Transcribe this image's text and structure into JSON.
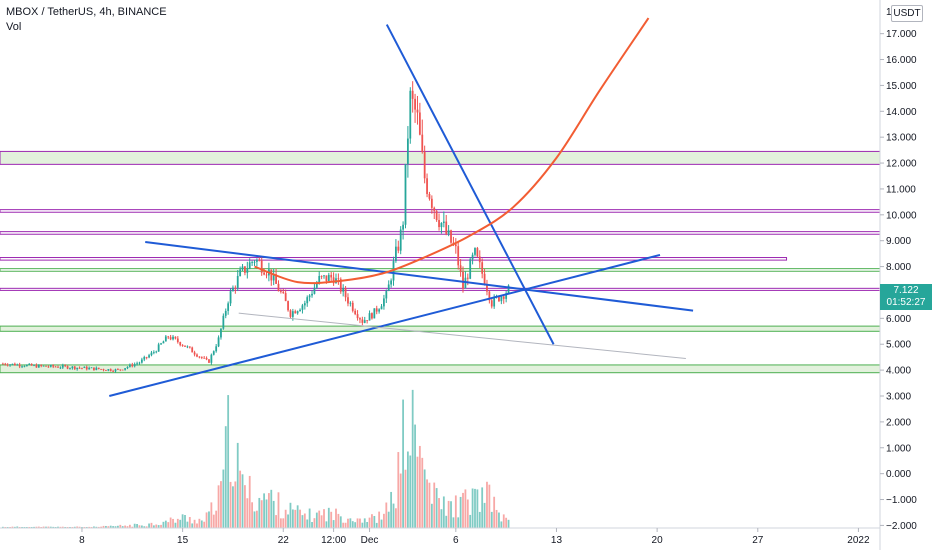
{
  "header": {
    "title": "MBOX / TetherUS, 4h, BINANCE",
    "volume_label": "Vol"
  },
  "axis": {
    "unit": "USDT",
    "last_price": "7.122",
    "countdown": "01:52:27"
  },
  "colors": {
    "up": "#26a69a",
    "down": "#ef5350",
    "trend_line": "#1f5bd6",
    "arc": "#f25d33",
    "zone_green": "#4caf50",
    "zone_purple": "#9c27b0",
    "zone_fill": "#dff0d8"
  },
  "chart_data": {
    "type": "candlestick",
    "y_ticks": [
      "17.000",
      "16.000",
      "15.000",
      "14.000",
      "13.000",
      "12.000",
      "11.000",
      "10.000",
      "9.000",
      "8.000",
      "7.000",
      "6.000",
      "5.000",
      "4.000",
      "3.000",
      "2.000",
      "1.000",
      "0.000",
      "−1.000",
      "−2.000"
    ],
    "y_tick_values": [
      17,
      16,
      15,
      14,
      13,
      12,
      11,
      10,
      9,
      8,
      7,
      6,
      5,
      4,
      3,
      2,
      1,
      0,
      -1,
      -2
    ],
    "x_ticks": [
      "8",
      "15",
      "22",
      "12:00",
      "Dec",
      "6",
      "13",
      "20",
      "27",
      "2022"
    ],
    "x_tick_days": [
      8,
      15,
      22,
      25.5,
      28,
      34,
      41,
      48,
      55,
      62
    ],
    "x_range_days": [
      2.3,
      63.5
    ],
    "y_range": [
      -2.1,
      18.3
    ],
    "top_axis_label": "1",
    "price_anchors": [
      [
        2.5,
        4.25
      ],
      [
        5,
        4.15
      ],
      [
        7,
        4.12
      ],
      [
        9,
        4.05
      ],
      [
        10.5,
        4.0
      ],
      [
        12,
        4.3
      ],
      [
        13,
        4.7
      ],
      [
        14,
        5.3
      ],
      [
        15,
        5.0
      ],
      [
        16,
        4.6
      ],
      [
        16.8,
        4.3
      ],
      [
        17.5,
        5.2
      ],
      [
        18.2,
        6.8
      ],
      [
        19,
        7.7
      ],
      [
        20,
        8.3
      ],
      [
        21,
        7.8
      ],
      [
        22,
        6.8
      ],
      [
        22.5,
        6.2
      ],
      [
        23.5,
        6.6
      ],
      [
        24.5,
        7.5
      ],
      [
        25.5,
        7.6
      ],
      [
        26.5,
        6.7
      ],
      [
        27.5,
        5.9
      ],
      [
        28.3,
        6.2
      ],
      [
        29.2,
        6.9
      ],
      [
        29.8,
        8.4
      ],
      [
        30.3,
        9.5
      ],
      [
        30.8,
        14.5
      ],
      [
        31.3,
        13.8
      ],
      [
        31.8,
        11.5
      ],
      [
        32.5,
        10.3
      ],
      [
        33.3,
        9.3
      ],
      [
        34,
        8.6
      ],
      [
        34.5,
        7.2
      ],
      [
        35.3,
        8.5
      ],
      [
        36,
        7.5
      ],
      [
        36.5,
        6.6
      ],
      [
        37.2,
        6.9
      ],
      [
        37.7,
        7.12
      ]
    ],
    "volume_anchors": [
      [
        2.5,
        0.01
      ],
      [
        9,
        0.01
      ],
      [
        12,
        0.03
      ],
      [
        13.5,
        0.05
      ],
      [
        15,
        0.1
      ],
      [
        16.5,
        0.07
      ],
      [
        17.6,
        0.3
      ],
      [
        18.3,
        1.0
      ],
      [
        19,
        0.45
      ],
      [
        20,
        0.3
      ],
      [
        21,
        0.3
      ],
      [
        22,
        0.2
      ],
      [
        23,
        0.15
      ],
      [
        24,
        0.12
      ],
      [
        25,
        0.15
      ],
      [
        26,
        0.12
      ],
      [
        27,
        0.1
      ],
      [
        28,
        0.09
      ],
      [
        29,
        0.12
      ],
      [
        29.8,
        0.35
      ],
      [
        30.5,
        1.0
      ],
      [
        31.2,
        0.9
      ],
      [
        31.8,
        0.55
      ],
      [
        32.5,
        0.3
      ],
      [
        33.5,
        0.2
      ],
      [
        34.5,
        0.25
      ],
      [
        35.5,
        0.3
      ],
      [
        36.3,
        0.3
      ],
      [
        37,
        0.15
      ],
      [
        37.7,
        0.05
      ]
    ],
    "volume_max_px": 125,
    "horizontal_zones": [
      {
        "y1": 11.95,
        "y2": 12.45,
        "color": "purple",
        "x_end_day": 63.5
      },
      {
        "y1": 10.1,
        "y2": 10.2,
        "color": "purple",
        "x_end_day": 63.5
      },
      {
        "y1": 9.25,
        "y2": 9.35,
        "color": "purple",
        "x_end_day": 63.5
      },
      {
        "y1": 8.25,
        "y2": 8.35,
        "color": "purple",
        "x_end_day": 57
      },
      {
        "y1": 7.82,
        "y2": 7.92,
        "color": "green",
        "x_end_day": 63.5
      },
      {
        "y1": 7.08,
        "y2": 7.16,
        "color": "purple",
        "x_end_day": 63.5
      },
      {
        "y1": 5.5,
        "y2": 5.7,
        "color": "green",
        "x_end_day": 63.5
      },
      {
        "y1": 3.9,
        "y2": 4.2,
        "color": "green",
        "x_end_day": 63.5
      }
    ],
    "trend_lines": [
      {
        "from": [
          12.4,
          8.95
        ],
        "to": [
          50.5,
          6.3
        ],
        "color": "blue"
      },
      {
        "from": [
          9.9,
          3.0
        ],
        "to": [
          48.2,
          8.45
        ],
        "color": "blue"
      },
      {
        "from": [
          29.2,
          17.35
        ],
        "to": [
          40.8,
          5.0
        ],
        "color": "blue"
      },
      {
        "from": [
          18.9,
          6.2
        ],
        "to": [
          50.0,
          4.45
        ],
        "color": "gray"
      }
    ],
    "arc": {
      "points": [
        [
          20,
          8.0
        ],
        [
          23,
          7.4
        ],
        [
          26,
          7.45
        ],
        [
          29,
          7.75
        ],
        [
          32,
          8.4
        ],
        [
          35,
          9.2
        ],
        [
          38,
          10.3
        ],
        [
          41,
          12.2
        ],
        [
          44,
          14.8
        ],
        [
          47.4,
          17.6
        ]
      ],
      "color": "orange"
    }
  }
}
